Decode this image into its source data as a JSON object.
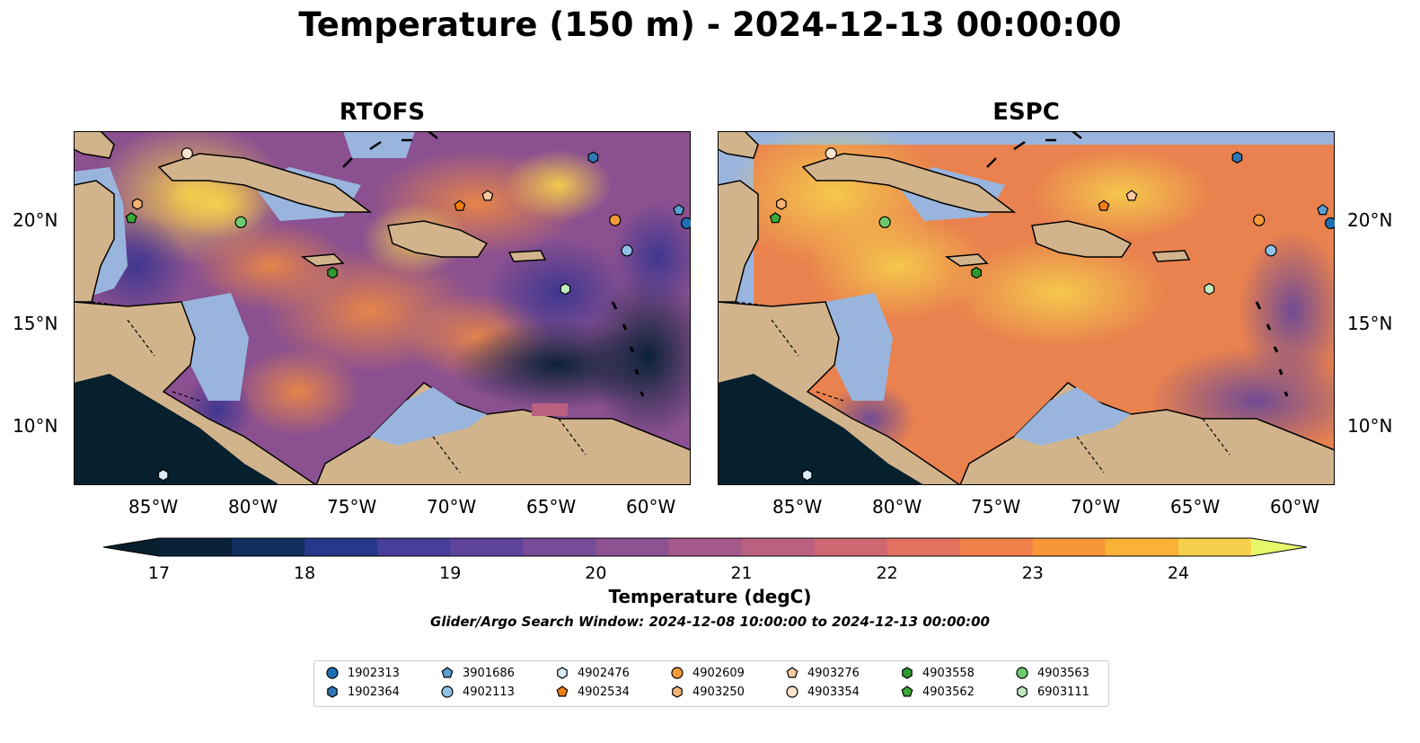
{
  "title": "Temperature (150 m) - 2024-12-13 00:00:00",
  "panels": [
    {
      "title": "RTOFS"
    },
    {
      "title": "ESPC"
    }
  ],
  "axes": {
    "lat_ticks": [
      "20°N",
      "15°N",
      "10°N"
    ],
    "lon_ticks": [
      "85°W",
      "80°W",
      "75°W",
      "70°W",
      "65°W",
      "60°W"
    ],
    "lat_range": [
      7,
      24.5
    ],
    "lon_range": [
      -89,
      -58
    ]
  },
  "colorbar": {
    "title": "Temperature (degC)",
    "tick_labels": [
      "17",
      "18",
      "19",
      "20",
      "21",
      "22",
      "23",
      "24"
    ],
    "range": [
      17,
      24.5
    ],
    "colors": [
      "#0a2237",
      "#102d5c",
      "#27378a",
      "#473e9b",
      "#5e449b",
      "#764b98",
      "#8d5292",
      "#a4598b",
      "#bb6081",
      "#cf6772",
      "#e37160",
      "#f1804a",
      "#f79838",
      "#f9b236",
      "#f6d04c"
    ],
    "under_color": "#07202e",
    "over_color": "#e6f86a"
  },
  "search_window": "Glider/Argo Search Window: 2024-12-08 10:00:00 to 2024-12-13 00:00:00",
  "legend": [
    {
      "id": "1902313",
      "shape": "circle",
      "color": "#1f6fb4"
    },
    {
      "id": "1902364",
      "shape": "hexagon",
      "color": "#2e78b8"
    },
    {
      "id": "3901686",
      "shape": "pentagon",
      "color": "#5a9fd4"
    },
    {
      "id": "4902113",
      "shape": "circle",
      "color": "#8fc0e6"
    },
    {
      "id": "4902476",
      "shape": "hexagon",
      "color": "#d8ecfa"
    },
    {
      "id": "4902534",
      "shape": "pentagon",
      "color": "#f07f10"
    },
    {
      "id": "4902609",
      "shape": "circle",
      "color": "#f59a3a"
    },
    {
      "id": "4903250",
      "shape": "hexagon",
      "color": "#f7b373"
    },
    {
      "id": "4903276",
      "shape": "pentagon",
      "color": "#f9caa0"
    },
    {
      "id": "4903354",
      "shape": "circle",
      "color": "#fde2ca"
    },
    {
      "id": "4903558",
      "shape": "hexagon",
      "color": "#2e9a2e"
    },
    {
      "id": "4903562",
      "shape": "pentagon",
      "color": "#3aaa3a"
    },
    {
      "id": "4903563",
      "shape": "circle",
      "color": "#6fca6f"
    },
    {
      "id": "6903111",
      "shape": "hexagon",
      "color": "#bfeabf"
    }
  ],
  "floats": [
    {
      "id": "4903354",
      "lon": -83.3,
      "lat": 23.4
    },
    {
      "id": "4903250",
      "lon": -85.8,
      "lat": 20.9
    },
    {
      "id": "4903562",
      "lon": -86.1,
      "lat": 20.2
    },
    {
      "id": "4903563",
      "lon": -80.6,
      "lat": 20.0
    },
    {
      "id": "1902364",
      "lon": -62.9,
      "lat": 23.2
    },
    {
      "id": "4902534",
      "lon": -69.6,
      "lat": 20.8
    },
    {
      "id": "4903276",
      "lon": -68.2,
      "lat": 21.3
    },
    {
      "id": "4902609",
      "lon": -61.8,
      "lat": 20.1
    },
    {
      "id": "3901686",
      "lon": -58.6,
      "lat": 20.6
    },
    {
      "id": "1902313",
      "lon": -58.2,
      "lat": 19.95
    },
    {
      "id": "4902113",
      "lon": -61.2,
      "lat": 18.6
    },
    {
      "id": "4903558",
      "lon": -76.0,
      "lat": 17.5
    },
    {
      "id": "6903111",
      "lon": -64.3,
      "lat": 16.7
    },
    {
      "id": "4902476",
      "lon": -84.5,
      "lat": 7.5
    }
  ]
}
